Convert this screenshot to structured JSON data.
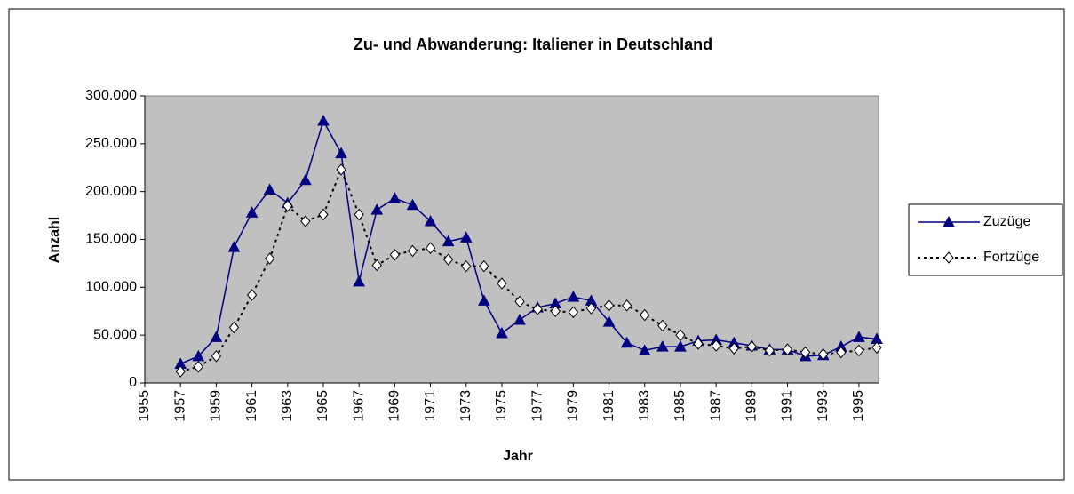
{
  "chart_data": {
    "type": "line",
    "title": "Zu- und Abwanderung: Italiener in Deutschland",
    "xlabel": "Jahr",
    "ylabel": "Anzahl",
    "x": [
      1957,
      1958,
      1959,
      1960,
      1961,
      1962,
      1963,
      1964,
      1965,
      1966,
      1967,
      1968,
      1969,
      1970,
      1971,
      1972,
      1973,
      1974,
      1975,
      1976,
      1977,
      1978,
      1979,
      1980,
      1981,
      1982,
      1983,
      1984,
      1985,
      1986,
      1987,
      1988,
      1989,
      1990,
      1991,
      1992,
      1993,
      1994,
      1995,
      1996
    ],
    "series": [
      {
        "name": "Zuzüge",
        "color": "#000080",
        "marker": "triangle",
        "dashed": false,
        "values": [
          20000,
          28000,
          48000,
          142000,
          178000,
          202000,
          188000,
          212000,
          274000,
          240000,
          106000,
          181000,
          193000,
          186000,
          169000,
          148000,
          152000,
          86000,
          52000,
          66000,
          79000,
          83000,
          90000,
          86000,
          64000,
          42000,
          34000,
          38000,
          38000,
          44000,
          45000,
          42000,
          39000,
          35000,
          35000,
          28000,
          29000,
          38000,
          48000,
          46000
        ]
      },
      {
        "name": "Fortzüge",
        "color": "#000000",
        "marker": "diamond",
        "dashed": true,
        "values": [
          12000,
          17000,
          28000,
          58000,
          92000,
          130000,
          185000,
          169000,
          176000,
          223000,
          176000,
          123000,
          134000,
          138000,
          141000,
          129000,
          122000,
          122000,
          104000,
          85000,
          77000,
          75000,
          74000,
          78000,
          81000,
          81000,
          71000,
          60000,
          50000,
          41000,
          39000,
          36000,
          38000,
          34000,
          35000,
          32000,
          30000,
          32000,
          34000,
          37000
        ]
      }
    ],
    "xlim": [
      1955,
      1996
    ],
    "xticks": [
      1955,
      1957,
      1959,
      1961,
      1963,
      1965,
      1967,
      1969,
      1971,
      1973,
      1975,
      1977,
      1979,
      1981,
      1983,
      1985,
      1987,
      1989,
      1991,
      1993,
      1995
    ],
    "ylim": [
      0,
      300000
    ],
    "yticks": [
      0,
      {
        "value": 50000,
        "label": "50.000"
      },
      {
        "value": 100000,
        "label": "100.000"
      },
      {
        "value": 150000,
        "label": "150.000"
      },
      {
        "value": 200000,
        "label": "200.000"
      },
      {
        "value": 250000,
        "label": "250.000"
      },
      {
        "value": 300000,
        "label": "300.000"
      }
    ],
    "grid": false,
    "legend": "right"
  }
}
